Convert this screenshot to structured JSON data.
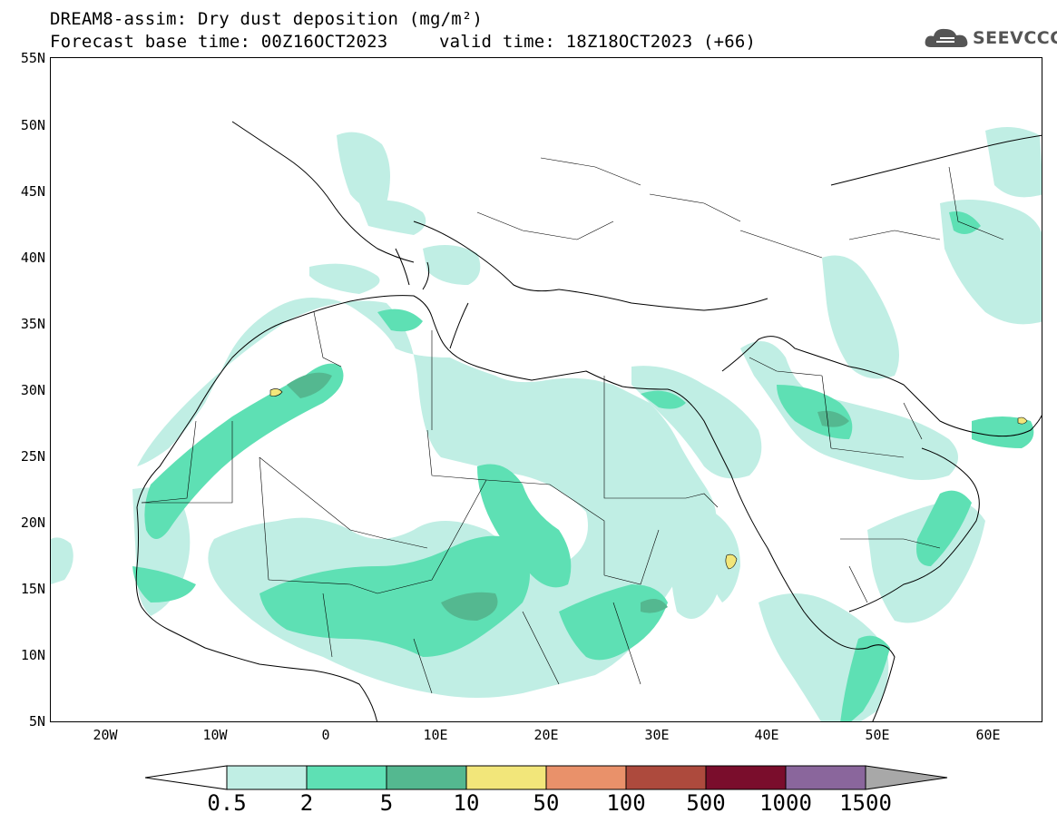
{
  "title": {
    "line1": "DREAM8-assim: Dry dust deposition (mg/m²)",
    "base_time": "Forecast base time: 00Z16OCT2023",
    "valid_time": "valid time: 18Z18OCT2023 (+66)"
  },
  "logo": {
    "text": "SEEVCCC",
    "icon": "cloud-logo-icon"
  },
  "map": {
    "lat_labels": [
      "55N",
      "50N",
      "45N",
      "40N",
      "35N",
      "30N",
      "25N",
      "20N",
      "15N",
      "10N",
      "5N"
    ],
    "lon_labels": [
      "20W",
      "10W",
      "0",
      "10E",
      "20E",
      "30E",
      "40E",
      "50E",
      "60E"
    ],
    "lat_range": [
      5,
      55
    ],
    "lon_range": [
      -25,
      65
    ]
  },
  "legend": {
    "levels": [
      "0.5",
      "2",
      "5",
      "10",
      "50",
      "100",
      "500",
      "1000",
      "1500"
    ],
    "colors": [
      "#c0eee4",
      "#5ee0b4",
      "#54b890",
      "#f2e67a",
      "#e9916a",
      "#ad4a3d",
      "#7a0d2c",
      "#8a669c",
      "#a8a8a8"
    ],
    "under_color": "#ffffff",
    "over_color": "#a8a8a8"
  }
}
